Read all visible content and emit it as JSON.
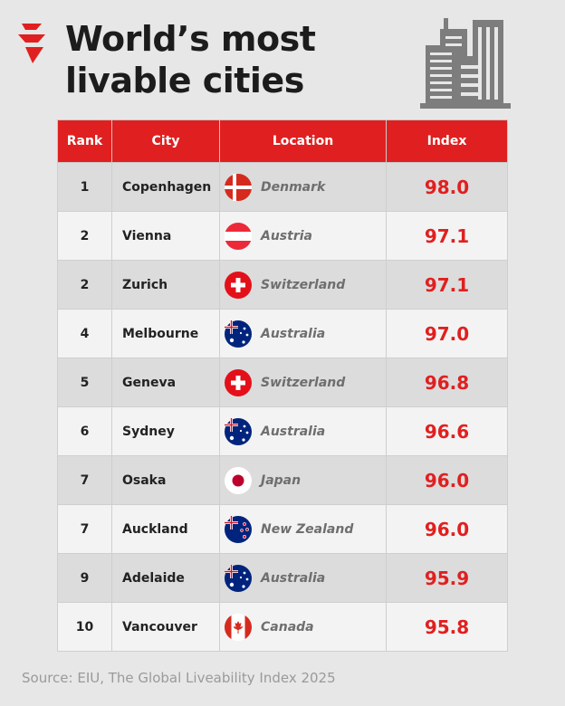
{
  "title_lines": [
    "World’s most",
    "livable cities"
  ],
  "colors": {
    "accent": "#e02020",
    "background": "#e7e7e7",
    "text": "#1c1c1c"
  },
  "icons": {
    "logo": "sbs-logo-icon",
    "illustration": "city-buildings-icon"
  },
  "chart_data": {
    "type": "table",
    "columns": [
      "Rank",
      "City",
      "Location",
      "Index"
    ],
    "rows": [
      {
        "rank": "1",
        "city": "Copenhagen",
        "location": "Denmark",
        "flag": "denmark-flag-icon",
        "index": "98.0"
      },
      {
        "rank": "2",
        "city": "Vienna",
        "location": "Austria",
        "flag": "austria-flag-icon",
        "index": "97.1"
      },
      {
        "rank": "2",
        "city": "Zurich",
        "location": "Switzerland",
        "flag": "switzerland-flag-icon",
        "index": "97.1"
      },
      {
        "rank": "4",
        "city": "Melbourne",
        "location": "Australia",
        "flag": "australia-flag-icon",
        "index": "97.0"
      },
      {
        "rank": "5",
        "city": "Geneva",
        "location": "Switzerland",
        "flag": "switzerland-flag-icon",
        "index": "96.8"
      },
      {
        "rank": "6",
        "city": "Sydney",
        "location": "Australia",
        "flag": "australia-flag-icon",
        "index": "96.6"
      },
      {
        "rank": "7",
        "city": "Osaka",
        "location": "Japan",
        "flag": "japan-flag-icon",
        "index": "96.0"
      },
      {
        "rank": "7",
        "city": "Auckland",
        "location": "New Zealand",
        "flag": "new-zealand-flag-icon",
        "index": "96.0"
      },
      {
        "rank": "9",
        "city": "Adelaide",
        "location": "Australia",
        "flag": "australia-flag-icon",
        "index": "95.9"
      },
      {
        "rank": "10",
        "city": "Vancouver",
        "location": "Canada",
        "flag": "canada-flag-icon",
        "index": "95.8"
      }
    ]
  },
  "source": "Source: EIU, The Global Liveability Index 2025"
}
